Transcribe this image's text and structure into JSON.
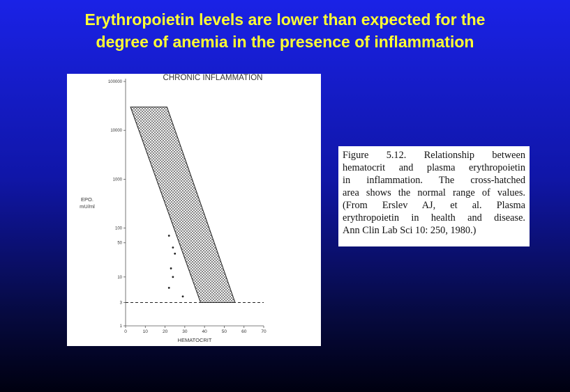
{
  "slide": {
    "title_lines": [
      "Erythropoietin levels are lower than expected for the",
      "degree of anemia in the presence of inflammation"
    ],
    "caption_lines": [
      "Figure 5.12. Relationship between",
      "hematocrit and plasma erythropoietin",
      "in inflammation. The cross-hatched",
      "area shows the normal range of values.",
      "(From Erslev AJ, et al. Plasma",
      "erythropoietin in health and disease.",
      "Ann Clin Lab Sci 10: 250, 1980.)"
    ]
  },
  "chart_data": {
    "type": "range-band",
    "title": "CHRONIC INFLAMMATION",
    "x_label": "HEMATOCRIT",
    "y_label": [
      "EPO.",
      "mU/ml"
    ],
    "xlim": [
      0,
      70
    ],
    "xticks": [
      0,
      10,
      20,
      30,
      40,
      50,
      60,
      70
    ],
    "ylim": [
      1,
      100000
    ],
    "yticks": [
      1,
      3,
      10,
      50,
      100,
      1000,
      10000,
      100000
    ],
    "log_y": true,
    "color": "#222222",
    "band": {
      "top_y": 30000,
      "bottom_y": 3,
      "top_x": [
        2.5,
        21
      ],
      "bottom_x": [
        38,
        55.5
      ]
    },
    "points": {
      "x": [
        22,
        24,
        25,
        23,
        24,
        22,
        29
      ],
      "y": [
        70,
        40,
        30,
        15,
        10,
        6,
        4
      ]
    }
  }
}
